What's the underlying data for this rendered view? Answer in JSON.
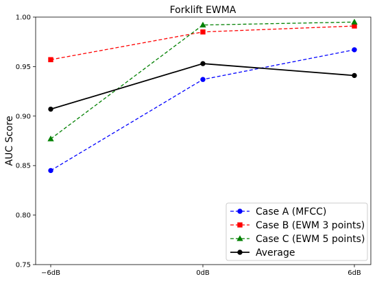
{
  "chart_data": {
    "type": "line",
    "title": "Forklift EWMA",
    "xlabel": "",
    "ylabel": "AUC Score",
    "categories": [
      "−6dB",
      "0dB",
      "6dB"
    ],
    "ylim": [
      0.75,
      1.0
    ],
    "yticks": [
      "0.75",
      "0.80",
      "0.85",
      "0.90",
      "0.95",
      "1.00"
    ],
    "ytick_values": [
      0.75,
      0.8,
      0.85,
      0.9,
      0.95,
      1.0
    ],
    "grid": false,
    "legend_position": "bottom-right",
    "series": [
      {
        "name": "Case A (MFCC)",
        "values": [
          0.845,
          0.937,
          0.967
        ],
        "color": "#0000ff",
        "linestyle": "dashed",
        "marker": "circle"
      },
      {
        "name": "Case B (EWM 3 points)",
        "values": [
          0.957,
          0.985,
          0.991
        ],
        "color": "#ff0000",
        "linestyle": "dashed",
        "marker": "square"
      },
      {
        "name": "Case C (EWM 5 points)",
        "values": [
          0.877,
          0.992,
          0.995
        ],
        "color": "#008000",
        "linestyle": "dashed",
        "marker": "triangle"
      },
      {
        "name": "Average",
        "values": [
          0.907,
          0.953,
          0.941
        ],
        "color": "#000000",
        "linestyle": "solid",
        "marker": "circle"
      }
    ]
  }
}
